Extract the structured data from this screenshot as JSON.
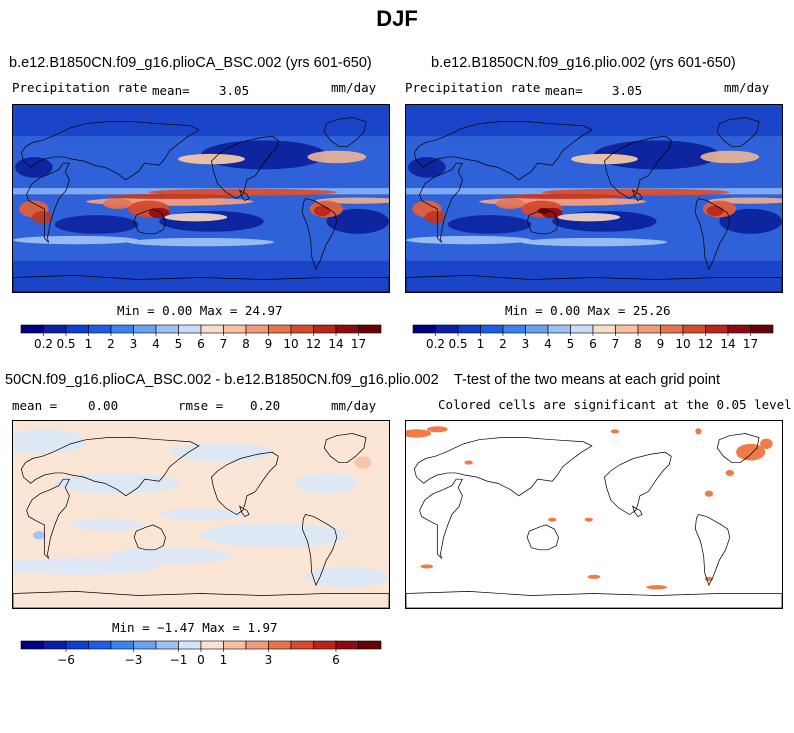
{
  "title": "DJF",
  "panels": [
    {
      "id": "p1",
      "title": "b.e12.B1850CN.f09_g16.plioCA_BSC.002 (yrs 601-650)",
      "left_label": "Precipitation rate",
      "center_label": "mean=",
      "center_value": "3.05",
      "right_label": "mm/day",
      "minmax": "Min =   0.00 Max =  24.97"
    },
    {
      "id": "p2",
      "title": "b.e12.B1850CN.f09_g16.plio.002 (yrs 601-650)",
      "left_label": "Precipitation rate",
      "center_label": "mean=",
      "center_value": "3.05",
      "right_label": "mm/day",
      "minmax": "Min =   0.00 Max =  25.26"
    },
    {
      "id": "p3",
      "title": "50CN.f09_g16.plioCA_BSC.002 - b.e12.B1850CN.f09_g16.plio.002",
      "left_label": "mean =",
      "left_value": "0.00",
      "center_label": "rmse =",
      "center_value": "0.20",
      "right_label": "mm/day",
      "minmax": "Min = −1.47 Max =   1.97"
    },
    {
      "id": "p4",
      "title": "T-test of the two means at each grid point",
      "subtitle": "Colored cells are significant at the 0.05 level"
    }
  ],
  "colorbar_precip": {
    "colors": [
      "#00007f",
      "#0a1fa6",
      "#0f3fd0",
      "#1c5fe6",
      "#3c82f0",
      "#6aa2f2",
      "#9cc2f5",
      "#c8dcf8",
      "#f7dcc8",
      "#f8c0a2",
      "#f29a78",
      "#e8734f",
      "#d84a2c",
      "#b9251a",
      "#8f0a10",
      "#6a0000"
    ],
    "ticks": [
      "0.2",
      "0.5",
      "1",
      "2",
      "3",
      "4",
      "5",
      "6",
      "7",
      "8",
      "9",
      "10",
      "12",
      "14",
      "17"
    ]
  },
  "colorbar_diff": {
    "colors": [
      "#00007f",
      "#0a1fa6",
      "#0f3fd0",
      "#1c5fe6",
      "#3c82f0",
      "#6aa2f2",
      "#9cc2f5",
      "#d6e6f8",
      "#fbe3d2",
      "#f8c0a2",
      "#f29a78",
      "#e8734f",
      "#d84a2c",
      "#b9251a",
      "#8f0a10",
      "#6a0000"
    ],
    "ticks": [
      "−6",
      "−3",
      "−1",
      "0",
      "1",
      "3",
      "6"
    ],
    "tick_positions": [
      2,
      5,
      7,
      8,
      9,
      11,
      14
    ]
  },
  "chart_data": [
    {
      "type": "heatmap",
      "title": "b.e12.B1850CN.f09_g16.plioCA_BSC.002 (yrs 601-650)",
      "variable": "Precipitation rate",
      "units": "mm/day",
      "mean": 3.05,
      "min": 0.0,
      "max": 24.97,
      "season": "DJF"
    },
    {
      "type": "heatmap",
      "title": "b.e12.B1850CN.f09_g16.plio.002 (yrs 601-650)",
      "variable": "Precipitation rate",
      "units": "mm/day",
      "mean": 3.05,
      "min": 0.0,
      "max": 25.26,
      "season": "DJF"
    },
    {
      "type": "heatmap",
      "title": "50CN.f09_g16.plioCA_BSC.002 - b.e12.B1850CN.f09_g16.plio.002",
      "units": "mm/day",
      "mean": 0.0,
      "rmse": 0.2,
      "min": -1.47,
      "max": 1.97,
      "season": "DJF"
    },
    {
      "type": "heatmap",
      "title": "T-test of the two means at each grid point",
      "note": "Colored cells are significant at the 0.05 level",
      "season": "DJF"
    }
  ]
}
